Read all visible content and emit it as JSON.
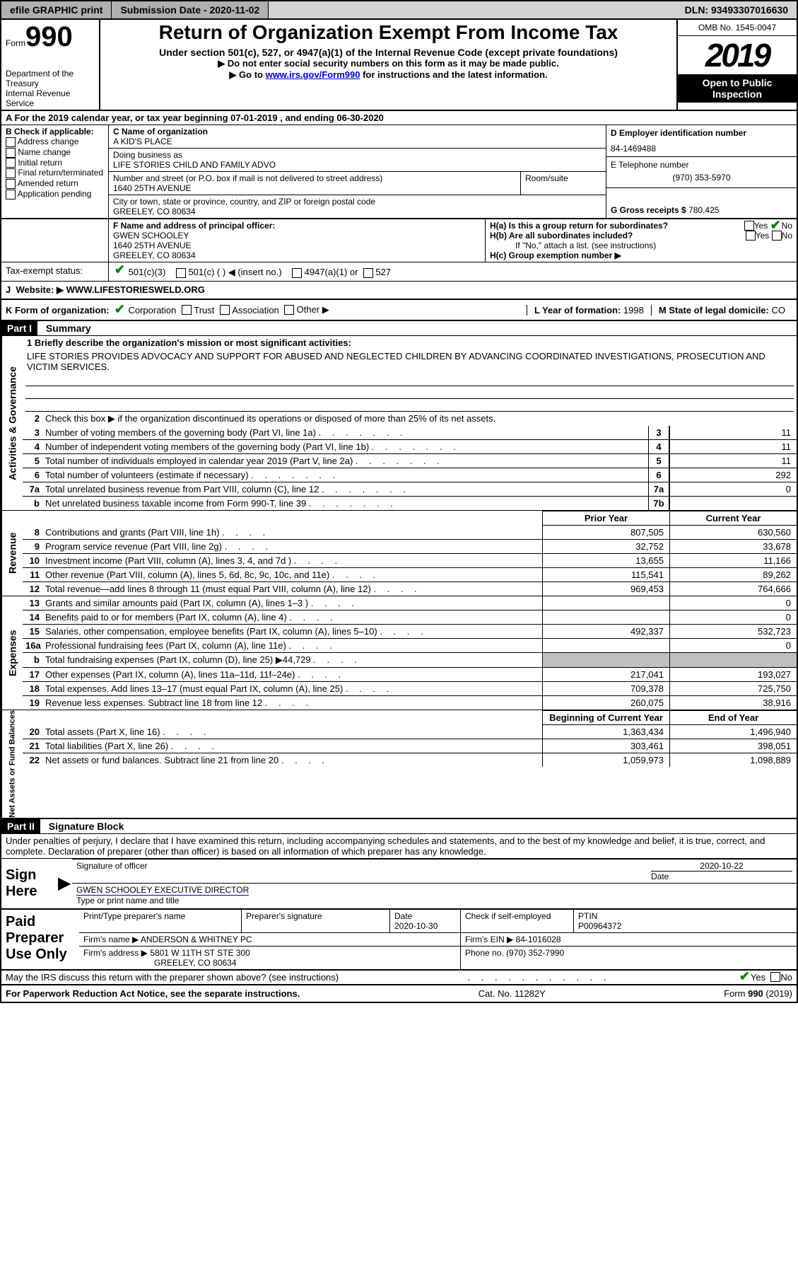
{
  "topbar": {
    "efile": "efile GRAPHIC print",
    "submission": "Submission Date - 2020-11-02",
    "dln": "DLN: 93493307016630"
  },
  "header": {
    "form_word": "Form",
    "num": "990",
    "title": "Return of Organization Exempt From Income Tax",
    "subtitle": "Under section 501(c), 527, or 4947(a)(1) of the Internal Revenue Code (except private foundations)",
    "ssn_note": "▶ Do not enter social security numbers on this form as it may be made public.",
    "instr_pre": "▶ Go to ",
    "instr_link": "www.irs.gov/Form990",
    "instr_post": " for instructions and the latest information.",
    "dept": "Department of the Treasury",
    "irs": "Internal Revenue Service",
    "omb": "OMB No. 1545-0047",
    "year": "2019",
    "open_pub": "Open to Public Inspection"
  },
  "rowA": "A For the 2019 calendar year, or tax year beginning 07-01-2019   , and ending 06-30-2020",
  "boxB": {
    "label": "B Check if applicable:",
    "opts": [
      "Address change",
      "Name change",
      "Initial return",
      "Final return/terminated",
      "Amended return",
      "Application pending"
    ]
  },
  "boxC": {
    "label_name": "C Name of organization",
    "name": "A KID'S PLACE",
    "label_dba": "Doing business as",
    "dba": "LIFE STORIES CHILD AND FAMILY ADVO",
    "label_addr": "Number and street (or P.O. box if mail is not delivered to street address)",
    "addr": "1640 25TH AVENUE",
    "room_label": "Room/suite",
    "label_city": "City or town, state or province, country, and ZIP or foreign postal code",
    "city": "GREELEY, CO  80634"
  },
  "boxD": {
    "label": "D Employer identification number",
    "ein": "84-1469488"
  },
  "boxE": {
    "label": "E Telephone number",
    "tel": "(970) 353-5970"
  },
  "boxG": {
    "label": "G Gross receipts $",
    "val": "780,425"
  },
  "boxF": {
    "label": "F  Name and address of principal officer:",
    "name": "GWEN SCHOOLEY",
    "addr1": "1640 25TH AVENUE",
    "addr2": "GREELEY, CO  80634"
  },
  "boxH": {
    "ha_label": "H(a)  Is this a group return for subordinates?",
    "hb_label": "H(b)  Are all subordinates included?",
    "if_no": "If \"No,\" attach a list. (see instructions)",
    "hc_label": "H(c)  Group exemption number ▶",
    "yes": "Yes",
    "no": "No"
  },
  "taxstatus": {
    "label": "Tax-exempt status:",
    "c3": "501(c)(3)",
    "c_other": "501(c) (  ) ◀ (insert no.)",
    "c4947": "4947(a)(1) or",
    "c527": "527"
  },
  "jrow": {
    "label": "J",
    "website_label": "Website: ▶",
    "website": "WWW.LIFESTORIESWELD.ORG"
  },
  "krow": {
    "label": "K Form of organization:",
    "corp": "Corporation",
    "trust": "Trust",
    "assoc": "Association",
    "other": "Other ▶",
    "l_label": "L Year of formation:",
    "l_val": "1998",
    "m_label": "M State of legal domicile:",
    "m_val": "CO"
  },
  "part1_hdr": "Part I",
  "part1_title": "Summary",
  "sidebars": {
    "ag": "Activities & Governance",
    "rev": "Revenue",
    "exp": "Expenses",
    "na": "Net Assets or Fund Balances"
  },
  "line1_label": "1 Briefly describe the organization's mission or most significant activities:",
  "mission": "LIFE STORIES PROVIDES ADVOCACY AND SUPPORT FOR ABUSED AND NEGLECTED CHILDREN BY ADVANCING COORDINATED INVESTIGATIONS, PROSECUTION AND VICTIM SERVICES.",
  "line2": "Check this box ▶        if the organization discontinued its operations or disposed of more than 25% of its net assets.",
  "gov_lines": [
    {
      "n": "3",
      "t": "Number of voting members of the governing body (Part VI, line 1a)",
      "b": "3",
      "v": "11"
    },
    {
      "n": "4",
      "t": "Number of independent voting members of the governing body (Part VI, line 1b)",
      "b": "4",
      "v": "11"
    },
    {
      "n": "5",
      "t": "Total number of individuals employed in calendar year 2019 (Part V, line 2a)",
      "b": "5",
      "v": "11"
    },
    {
      "n": "6",
      "t": "Total number of volunteers (estimate if necessary)",
      "b": "6",
      "v": "292"
    },
    {
      "n": "7a",
      "t": "Total unrelated business revenue from Part VIII, column (C), line 12",
      "b": "7a",
      "v": "0"
    },
    {
      "n": "b",
      "t": "Net unrelated business taxable income from Form 990-T, line 39",
      "b": "7b",
      "v": ""
    }
  ],
  "prior_year": "Prior Year",
  "current_year": "Current Year",
  "rev_lines": [
    {
      "n": "8",
      "t": "Contributions and grants (Part VIII, line 1h)",
      "py": "807,505",
      "cy": "630,560"
    },
    {
      "n": "9",
      "t": "Program service revenue (Part VIII, line 2g)",
      "py": "32,752",
      "cy": "33,678"
    },
    {
      "n": "10",
      "t": "Investment income (Part VIII, column (A), lines 3, 4, and 7d )",
      "py": "13,655",
      "cy": "11,166"
    },
    {
      "n": "11",
      "t": "Other revenue (Part VIII, column (A), lines 5, 6d, 8c, 9c, 10c, and 11e)",
      "py": "115,541",
      "cy": "89,262"
    },
    {
      "n": "12",
      "t": "Total revenue—add lines 8 through 11 (must equal Part VIII, column (A), line 12)",
      "py": "969,453",
      "cy": "764,666"
    }
  ],
  "exp_lines": [
    {
      "n": "13",
      "t": "Grants and similar amounts paid (Part IX, column (A), lines 1–3 )",
      "py": "",
      "cy": "0"
    },
    {
      "n": "14",
      "t": "Benefits paid to or for members (Part IX, column (A), line 4)",
      "py": "",
      "cy": "0"
    },
    {
      "n": "15",
      "t": "Salaries, other compensation, employee benefits (Part IX, column (A), lines 5–10)",
      "py": "492,337",
      "cy": "532,723"
    },
    {
      "n": "16a",
      "t": "Professional fundraising fees (Part IX, column (A), line 11e)",
      "py": "",
      "cy": "0"
    },
    {
      "n": "b",
      "t": "Total fundraising expenses (Part IX, column (D), line 25) ▶44,729",
      "py": "GRAY",
      "cy": "GRAY"
    },
    {
      "n": "17",
      "t": "Other expenses (Part IX, column (A), lines 11a–11d, 11f–24e)",
      "py": "217,041",
      "cy": "193,027"
    },
    {
      "n": "18",
      "t": "Total expenses. Add lines 13–17 (must equal Part IX, column (A), line 25)",
      "py": "709,378",
      "cy": "725,750"
    },
    {
      "n": "19",
      "t": "Revenue less expenses. Subtract line 18 from line 12",
      "py": "260,075",
      "cy": "38,916"
    }
  ],
  "boy": "Beginning of Current Year",
  "eoy": "End of Year",
  "na_lines": [
    {
      "n": "20",
      "t": "Total assets (Part X, line 16)",
      "py": "1,363,434",
      "cy": "1,496,940"
    },
    {
      "n": "21",
      "t": "Total liabilities (Part X, line 26)",
      "py": "303,461",
      "cy": "398,051"
    },
    {
      "n": "22",
      "t": "Net assets or fund balances. Subtract line 21 from line 20",
      "py": "1,059,973",
      "cy": "1,098,889"
    }
  ],
  "part2_hdr": "Part II",
  "part2_title": "Signature Block",
  "perjury": "Under penalties of perjury, I declare that I have examined this return, including accompanying schedules and statements, and to the best of my knowledge and belief, it is true, correct, and complete. Declaration of preparer (other than officer) is based on all information of which preparer has any knowledge.",
  "sign": {
    "label": "Sign Here",
    "sig_of": "Signature of officer",
    "date": "2020-10-22",
    "date_label": "Date",
    "name": "GWEN SCHOOLEY  EXECUTIVE DIRECTOR",
    "name_label": "Type or print name and title"
  },
  "prep": {
    "label": "Paid Preparer Use Only",
    "h_name": "Print/Type preparer's name",
    "h_sig": "Preparer's signature",
    "h_date": "Date",
    "date": "2020-10-30",
    "h_check": "Check        if self-employed",
    "h_ptin": "PTIN",
    "ptin": "P00964372",
    "firm_label": "Firm's name    ▶",
    "firm": "ANDERSON & WHITNEY PC",
    "firm_ein_label": "Firm's EIN ▶",
    "firm_ein": "84-1016028",
    "addr_label": "Firm's address ▶",
    "addr": "5801 W 11TH ST STE 300",
    "city": "GREELEY, CO  80634",
    "phone_label": "Phone no.",
    "phone": "(970) 352-7990"
  },
  "discuss": "May the IRS discuss this return with the preparer shown above? (see instructions)",
  "footer": {
    "pra": "For Paperwork Reduction Act Notice, see the separate instructions.",
    "cat": "Cat. No. 11282Y",
    "form": "Form 990 (2019)"
  }
}
